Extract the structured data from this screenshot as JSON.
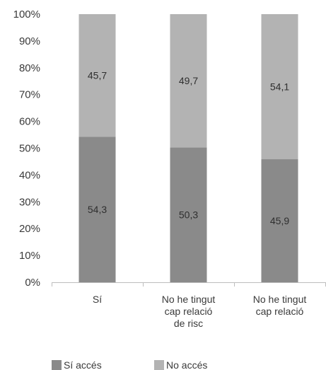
{
  "chart_data": {
    "type": "bar",
    "stacked": true,
    "percent_stacked": true,
    "categories": [
      [
        "Sí"
      ],
      [
        "No he tingut",
        "cap relació",
        "de risc"
      ],
      [
        "No he tingut",
        "cap relació"
      ]
    ],
    "series": [
      {
        "name": "Sí accés",
        "values": [
          54.3,
          50.3,
          45.9
        ],
        "labels": [
          "54,3",
          "50,3",
          "45,9"
        ],
        "color": "#8a8a8a"
      },
      {
        "name": "No accés",
        "values": [
          45.7,
          49.7,
          54.1
        ],
        "labels": [
          "45,7",
          "49,7",
          "54,1"
        ],
        "color": "#b3b3b3"
      }
    ],
    "ylim": [
      0,
      100
    ],
    "yticks": [
      "0%",
      "10%",
      "20%",
      "30%",
      "40%",
      "50%",
      "60%",
      "70%",
      "80%",
      "90%",
      "100%"
    ],
    "grid": false,
    "legend_position": "bottom-left"
  }
}
